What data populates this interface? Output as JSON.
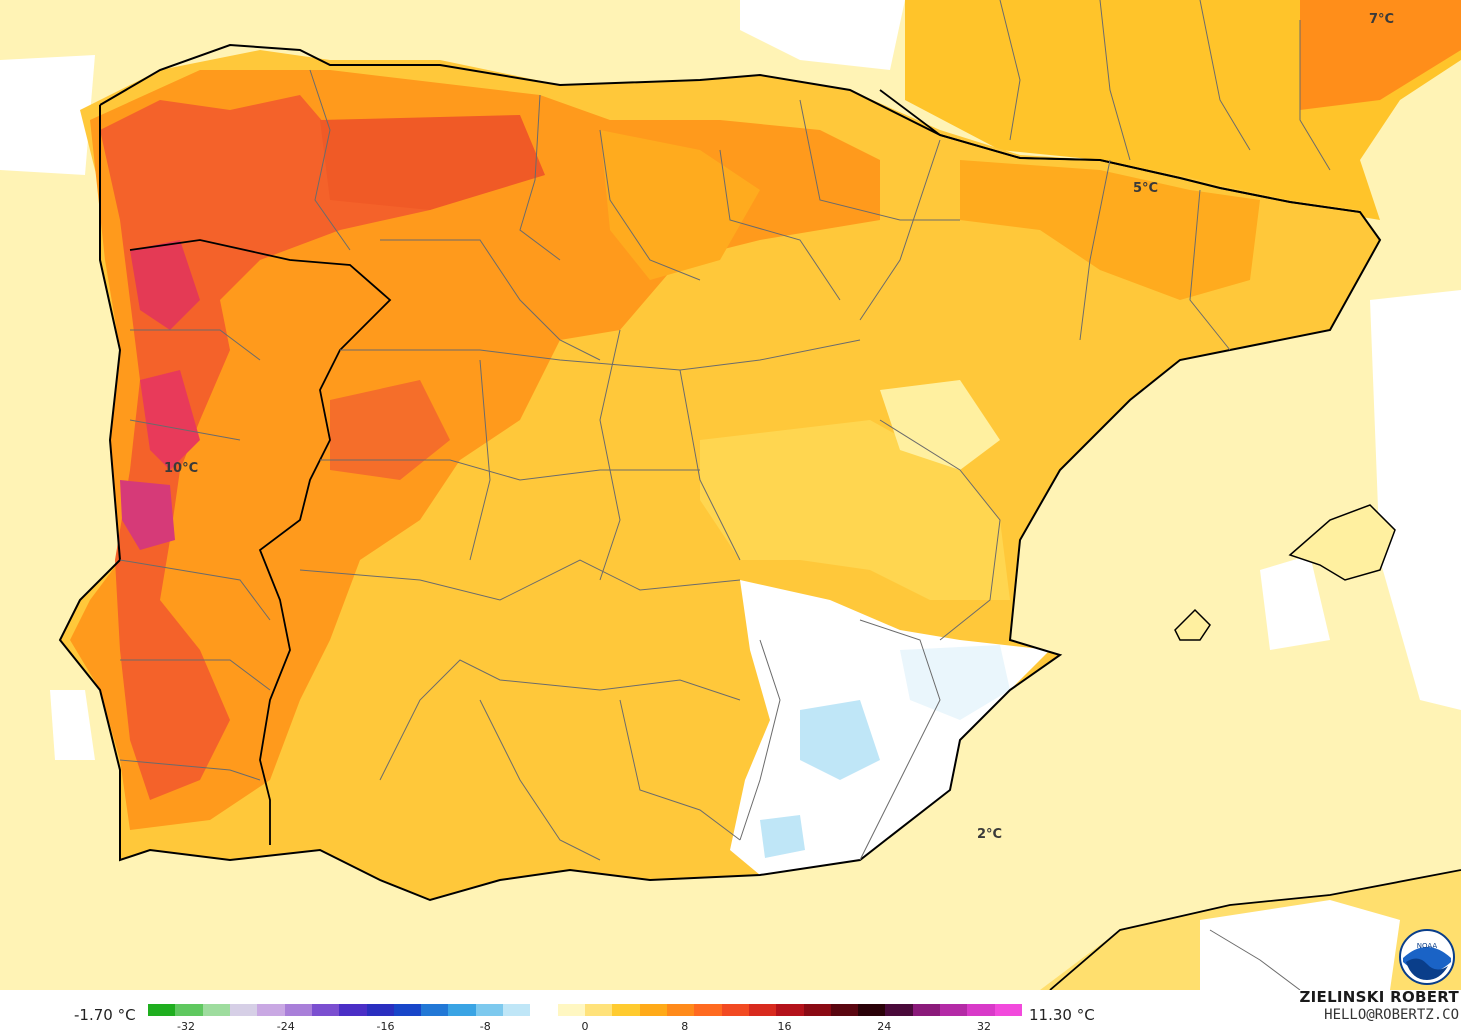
{
  "map": {
    "labels": [
      {
        "text": "7°C"
      },
      {
        "text": "5°C"
      },
      {
        "text": "10°C"
      },
      {
        "text": "2°C"
      }
    ]
  },
  "legend": {
    "min_label": "-1.70 °C",
    "max_label": "11.30 °C",
    "ticks": [
      "-32",
      "-24",
      "-16",
      "-8",
      "0",
      "8",
      "16",
      "24",
      "32"
    ],
    "colors": [
      "#1fae1f",
      "#5fc85f",
      "#9edc9e",
      "#d6cfe6",
      "#c9a8e3",
      "#a97fd9",
      "#7b4fd0",
      "#4b2fc6",
      "#2a2fbf",
      "#1846c9",
      "#2278d6",
      "#3aa4e4",
      "#7dc9ee",
      "#bfe6f7",
      "#ffffff",
      "#fff7c2",
      "#ffe27a",
      "#ffcb2f",
      "#ffaa18",
      "#ff8a1a",
      "#ff6a20",
      "#f24a22",
      "#d82a1e",
      "#b4121a",
      "#8a0a14",
      "#5a0610",
      "#2a0208",
      "#4a0a3a",
      "#8a1a7a",
      "#b42aa6",
      "#d83ac8",
      "#f24adc"
    ]
  },
  "credits": {
    "name": "ZIELINSKI ROBERT",
    "email": "HELLO@ROBERTZ.CO"
  },
  "logo": {
    "text": "NOAA"
  }
}
